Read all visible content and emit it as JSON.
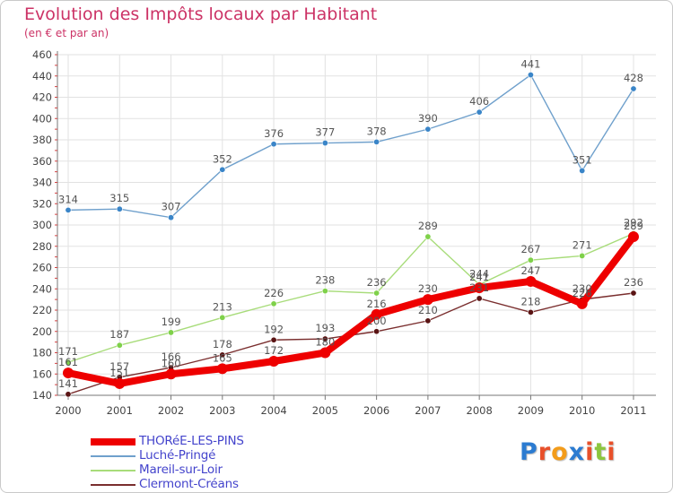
{
  "title": "Evolution des Impôts locaux par Habitant",
  "subtitle": "(en € et par an)",
  "brand": {
    "text": "Proxiti",
    "letters": [
      "P",
      "r",
      "o",
      "x",
      "i",
      "t",
      "i"
    ],
    "letter_colors": [
      "#2b7bd1",
      "#e8502a",
      "#f39c1a",
      "#2b7bd1",
      "#e8502a",
      "#8cc63e",
      "#e8502a"
    ]
  },
  "chart_data": {
    "type": "line",
    "title": "Evolution des Impôts locaux par Habitant",
    "subtitle": "(en € et par an)",
    "xlabel": "",
    "ylabel": "",
    "x": [
      "2000",
      "2001",
      "2002",
      "2003",
      "2004",
      "2005",
      "2006",
      "2007",
      "2008",
      "2009",
      "2010",
      "2011"
    ],
    "ylim": [
      140,
      460
    ],
    "yticks": [
      140,
      160,
      180,
      200,
      220,
      240,
      260,
      280,
      300,
      320,
      340,
      360,
      380,
      400,
      420,
      440,
      460
    ],
    "grid": true,
    "legend_position": "bottom-left",
    "series": [
      {
        "name": "THORéE-LES-PINS",
        "values": [
          161,
          151,
          160,
          165,
          172,
          180,
          216,
          230,
          241,
          247,
          226,
          289
        ],
        "color": "#ee0000",
        "thick": true,
        "labels": [
          "161",
          "151",
          "160",
          "165",
          "172",
          "180",
          "216",
          "230",
          "241",
          "247",
          "226",
          "289"
        ]
      },
      {
        "name": "Luché-Pringé",
        "values": [
          314,
          315,
          307,
          352,
          376,
          377,
          378,
          390,
          406,
          441,
          351,
          428
        ],
        "color": "#6fa0cc",
        "marker": "#3a85c8",
        "labels": [
          "314",
          "315",
          "307",
          "352",
          "376",
          "377",
          "378",
          "390",
          "406",
          "441",
          "351",
          "428"
        ]
      },
      {
        "name": "Mareil-sur-Loir",
        "values": [
          171,
          187,
          199,
          213,
          226,
          238,
          236,
          289,
          244,
          267,
          271,
          292
        ],
        "color": "#a8dc7a",
        "marker": "#7fd14a",
        "labels": [
          "171",
          "187",
          "199",
          "213",
          "226",
          "238",
          "236",
          "289",
          "244",
          "267",
          "271",
          "292"
        ]
      },
      {
        "name": "Clermont-Créans",
        "values": [
          141,
          157,
          166,
          178,
          192,
          193,
          200,
          210,
          231,
          218,
          230,
          236
        ],
        "color": "#7a2e2e",
        "marker": "#5a1414",
        "labels": [
          "141",
          "157",
          "166",
          "178",
          "192",
          "193",
          "200",
          "210",
          "231",
          "218",
          "230",
          "236"
        ]
      }
    ]
  }
}
